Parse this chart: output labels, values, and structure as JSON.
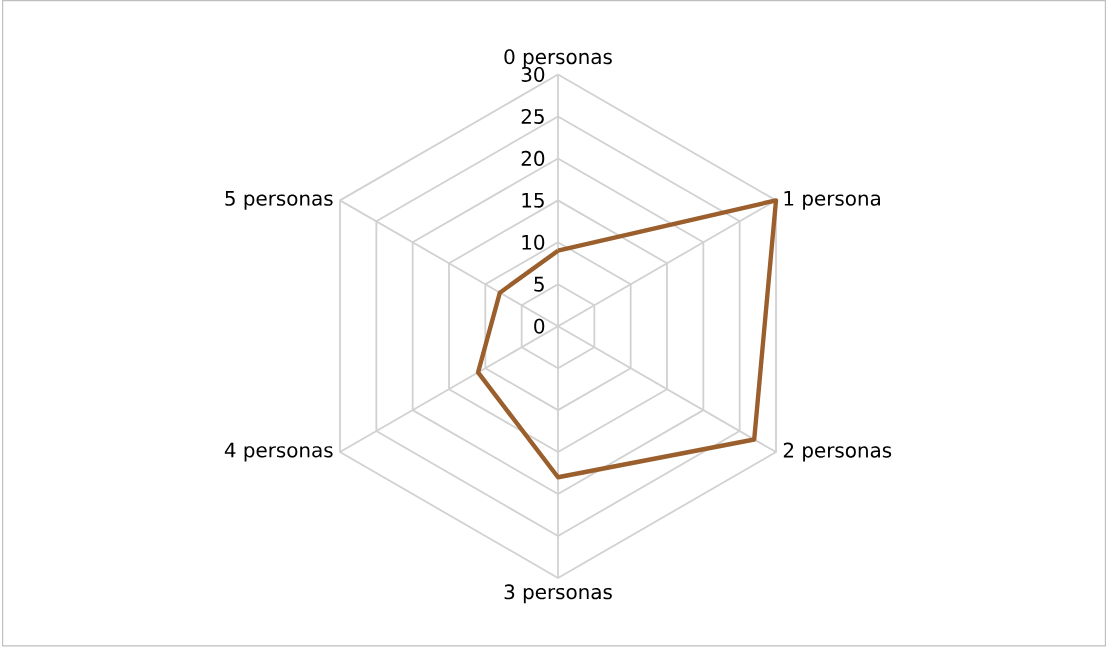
{
  "chart_data": {
    "type": "radar",
    "categories": [
      "0 personas",
      "1 persona",
      "2 personas",
      "3 personas",
      "4 personas",
      "5 personas"
    ],
    "series": [
      {
        "color": "#9a5f2c",
        "values": [
          9,
          30,
          27,
          18,
          11,
          8
        ]
      }
    ],
    "ylim": [
      0,
      30
    ],
    "yticks": [
      0,
      5,
      10,
      15,
      20,
      25,
      30
    ],
    "grid": true
  }
}
